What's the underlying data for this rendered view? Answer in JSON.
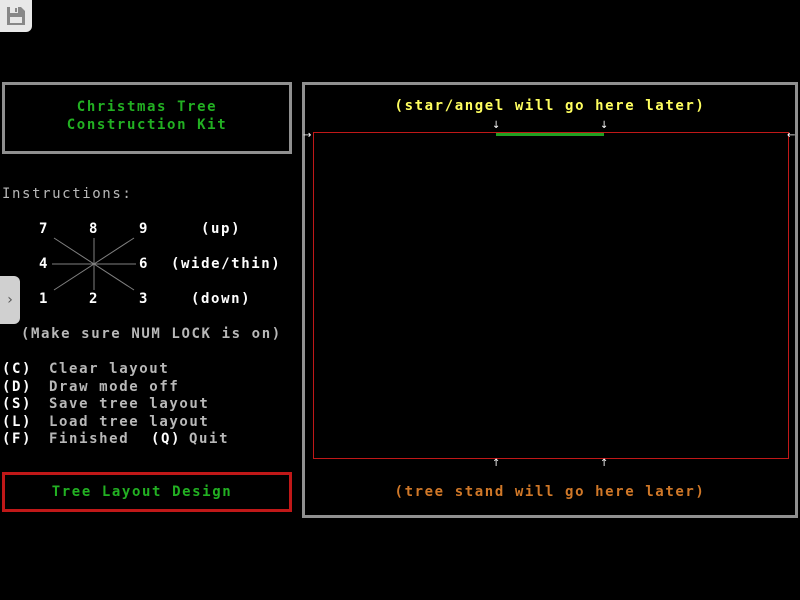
{
  "toolbar": {
    "save_icon": "floppy-disk-icon"
  },
  "title": {
    "line1": "Christmas Tree",
    "line2": "Construction Kit"
  },
  "instructions": {
    "heading": "Instructions:",
    "keys": {
      "k7": "7",
      "k8": "8",
      "k9": "9",
      "k4": "4",
      "k6": "6",
      "k1": "1",
      "k2": "2",
      "k3": "3"
    },
    "up": "(up)",
    "wide": "(wide/thin)",
    "down": "(down)",
    "numlock": "(Make sure NUM LOCK is on)"
  },
  "menu": [
    {
      "key": "(C)",
      "label": "Clear layout"
    },
    {
      "key": "(D)",
      "label": "Draw mode off"
    },
    {
      "key": "(S)",
      "label": "Save tree layout"
    },
    {
      "key": "(L)",
      "label": "Load tree layout"
    },
    {
      "key": "(F)",
      "label": "Finished",
      "key2": "(Q)",
      "label2": "Quit"
    }
  ],
  "mode_label": "Tree Layout Design",
  "canvas": {
    "top_text": "(star/angel will go here later)",
    "bottom_text": "(tree stand will go here later)"
  },
  "colors": {
    "title": "#22b022",
    "border_red": "#c01818",
    "frame_gray": "#909090",
    "top_text": "#ffff60",
    "bottom_text": "#d07828"
  }
}
